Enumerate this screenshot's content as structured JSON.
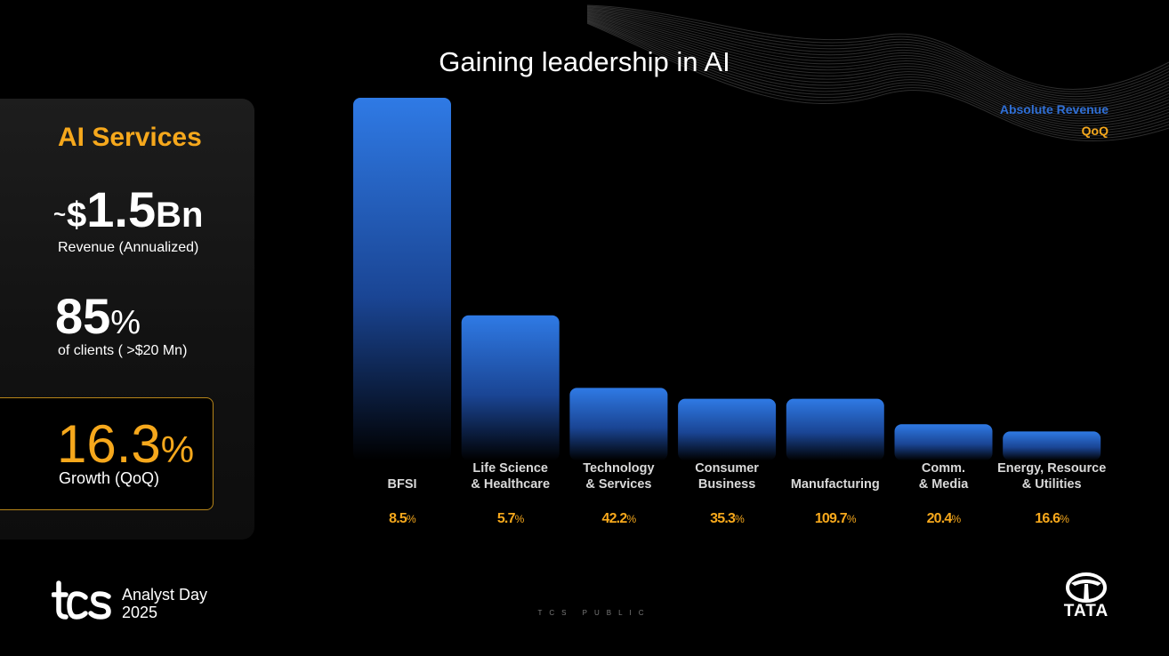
{
  "title": "Gaining leadership in AI",
  "panel": {
    "heading": "AI Services",
    "revenue_tilde": "~",
    "revenue_prefix": "$",
    "revenue_value": "1.5",
    "revenue_suffix": "Bn",
    "revenue_label": "Revenue (Annualized)",
    "clients_value": "85",
    "clients_suffix": "%",
    "clients_label": "of clients ( >$20 Mn)",
    "growth_value": "16.3",
    "growth_suffix": "%",
    "growth_label": "Growth (QoQ)"
  },
  "legend": {
    "absolute": "Absolute Revenue",
    "qoq": "QoQ"
  },
  "colors": {
    "accent_orange": "#f6a81c",
    "bar_blue": "#2f7ae5",
    "legend_blue": "#2f6fd6"
  },
  "chart_data": {
    "type": "bar",
    "title": "Gaining leadership in AI",
    "categories": [
      [
        "BFSI"
      ],
      [
        "Life Science",
        "& Healthcare"
      ],
      [
        "Technology",
        "& Services"
      ],
      [
        "Consumer",
        "Business"
      ],
      [
        "Manufacturing"
      ],
      [
        "Comm.",
        "& Media"
      ],
      [
        "Energy, Resource",
        "& Utilities"
      ]
    ],
    "series": [
      {
        "name": "Absolute Revenue",
        "values": [
          100,
          40,
          20,
          17,
          17,
          10,
          8
        ]
      }
    ],
    "qoq_labels": [
      "8.5",
      "5.7",
      "42.2",
      "35.3",
      "109.7",
      "20.4",
      "16.6"
    ],
    "qoq_suffix": "%",
    "ylim": [
      0,
      100
    ],
    "ylabel": "",
    "xlabel": "",
    "grid": false
  },
  "footer": {
    "event": "Analyst Day",
    "year": "2025",
    "classification": "TCS PUBLIC",
    "brand": "TATA"
  }
}
